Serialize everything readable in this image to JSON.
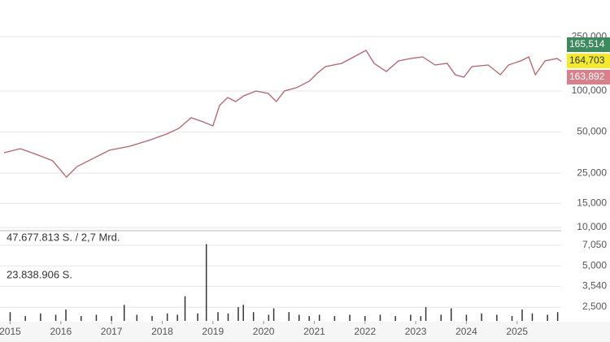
{
  "chart_data": [
    {
      "type": "line",
      "log_scale": true,
      "color": "#b8606c",
      "xlim": [
        2014.8,
        2025.87
      ],
      "ylim": [
        9600,
        464000
      ],
      "yticks": [
        {
          "value": 250000,
          "label": "250,000"
        },
        {
          "value": 100000,
          "label": "100,000"
        },
        {
          "value": 50000,
          "label": "50,000"
        },
        {
          "value": 25000,
          "label": "25,000"
        },
        {
          "value": 15000,
          "label": "15,000"
        },
        {
          "value": 10000,
          "label": "10,000"
        }
      ],
      "x": [
        2014.88,
        2015.2,
        2015.52,
        2015.84,
        2016.11,
        2016.32,
        2016.64,
        2016.96,
        2017.36,
        2017.77,
        2018.09,
        2018.33,
        2018.57,
        2018.81,
        2019.0,
        2019.13,
        2019.29,
        2019.45,
        2019.61,
        2019.85,
        2020.09,
        2020.25,
        2020.41,
        2020.65,
        2020.9,
        2021.06,
        2021.22,
        2021.54,
        2021.78,
        2022.02,
        2022.18,
        2022.42,
        2022.66,
        2022.9,
        2023.14,
        2023.38,
        2023.62,
        2023.78,
        2023.95,
        2024.11,
        2024.43,
        2024.67,
        2024.83,
        2025.07,
        2025.23,
        2025.36,
        2025.55,
        2025.79,
        2025.87
      ],
      "values": [
        35300,
        37800,
        34300,
        30800,
        23400,
        27900,
        32100,
        36800,
        39400,
        43900,
        48400,
        53200,
        63700,
        59400,
        55500,
        78200,
        89600,
        83700,
        92100,
        100000,
        96000,
        83700,
        100000,
        105700,
        117900,
        135100,
        150900,
        159400,
        177800,
        198500,
        159400,
        139000,
        166000,
        173000,
        177800,
        155000,
        159400,
        131500,
        126200,
        150900,
        155000,
        131500,
        155000,
        166000,
        177800,
        131500,
        166000,
        173000,
        164703
      ],
      "price_labels": [
        {
          "value": 165514,
          "label": "165,514",
          "color": "#3d8a5e"
        },
        {
          "value": 164703,
          "label": "164,703",
          "color": "#f2ea2c"
        },
        {
          "value": 163892,
          "label": "163,892",
          "color": "#d9818b"
        }
      ]
    },
    {
      "type": "bar",
      "log_scale": true,
      "color": "#333333",
      "xlim": [
        2014.8,
        2025.87
      ],
      "ylim": [
        1985,
        8890
      ],
      "yticks": [
        {
          "value": 7050,
          "label": "7,050"
        },
        {
          "value": 5000,
          "label": "5,000"
        },
        {
          "value": 3540,
          "label": "3,540"
        },
        {
          "value": 2500,
          "label": "2,500"
        }
      ],
      "xticks": [
        2015,
        2016,
        2017,
        2018,
        2019,
        2020,
        2021,
        2022,
        2023,
        2024,
        2025
      ],
      "annotations": [
        "47.677.813 S. / 2,7 Mrd.",
        "23.838.906 S."
      ],
      "x": [
        2015.0,
        2015.3,
        2015.6,
        2015.9,
        2016.1,
        2016.4,
        2016.7,
        2017.0,
        2017.25,
        2017.5,
        2017.8,
        2018.1,
        2018.3,
        2018.45,
        2018.7,
        2018.87,
        2019.1,
        2019.3,
        2019.5,
        2019.6,
        2019.8,
        2020.1,
        2020.2,
        2020.5,
        2020.7,
        2020.9,
        2021.1,
        2021.4,
        2021.7,
        2022.0,
        2022.3,
        2022.6,
        2022.9,
        2023.1,
        2023.2,
        2023.5,
        2023.7,
        2024.0,
        2024.3,
        2024.6,
        2024.9,
        2025.1,
        2025.3,
        2025.6,
        2025.8
      ],
      "values": [
        2300,
        2150,
        2250,
        2200,
        2400,
        2150,
        2200,
        2150,
        2600,
        2200,
        2150,
        2250,
        2200,
        3000,
        2250,
        7200,
        2300,
        2250,
        2500,
        2600,
        2300,
        2200,
        2450,
        2300,
        2200,
        2150,
        2200,
        2150,
        2200,
        2150,
        2200,
        2150,
        2200,
        2150,
        2500,
        2200,
        2450,
        2200,
        2250,
        2200,
        2150,
        2400,
        2250,
        2200,
        2300
      ]
    }
  ]
}
